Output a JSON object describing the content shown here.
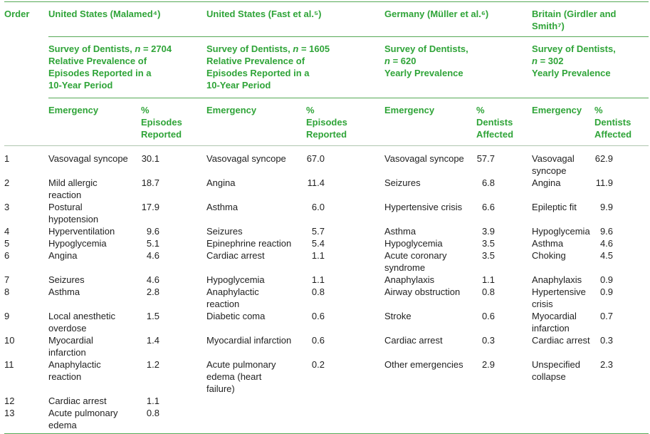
{
  "colors": {
    "header_green": "#2fa438",
    "rule_green": "#56a956",
    "rule_light": "#b0c6b0",
    "body_text": "#1f1f1f"
  },
  "table": {
    "order_header": "Order",
    "groups": [
      {
        "country": "United States (Malamed⁴)",
        "survey_lines": [
          "Survey of Dentists, n = 2704",
          "Relative Prevalence of",
          "Episodes Reported in a",
          "10-Year Period"
        ],
        "emergency_header": "Emergency",
        "percent_header": "% Episodes Reported"
      },
      {
        "country": "United States (Fast et al.⁵)",
        "survey_lines": [
          "Survey of Dentists, n = 1605",
          "Relative Prevalence of",
          "Episodes Reported in a",
          "10-Year Period"
        ],
        "emergency_header": "Emergency",
        "percent_header": "% Episodes Reported"
      },
      {
        "country": "Germany (Müller et al.⁶)",
        "survey_lines": [
          "Survey of Dentists,",
          "n = 620",
          "Yearly Prevalence"
        ],
        "emergency_header": "Emergency",
        "percent_header": "% Dentists Affected"
      },
      {
        "country": "Britain (Girdler and Smith⁷)",
        "survey_lines": [
          "Survey of Dentists,",
          "n = 302",
          "Yearly Prevalence"
        ],
        "emergency_header": "Emergency",
        "percent_header": "% Dentists Affected"
      }
    ],
    "rows": [
      {
        "order": "1",
        "entries": [
          {
            "emergency": "Vasovagal syncope",
            "percent": "30.1"
          },
          {
            "emergency": "Vasovagal syncope",
            "percent": "67.0"
          },
          {
            "emergency": "Vasovagal syncope",
            "percent": "57.7"
          },
          {
            "emergency": "Vasovagal syncope",
            "percent": "62.9"
          }
        ]
      },
      {
        "order": "2",
        "entries": [
          {
            "emergency": "Mild allergic reaction",
            "percent": "18.7"
          },
          {
            "emergency": "Angina",
            "percent": "11.4"
          },
          {
            "emergency": "Seizures",
            "percent": "6.8"
          },
          {
            "emergency": "Angina",
            "percent": "11.9"
          }
        ]
      },
      {
        "order": "3",
        "entries": [
          {
            "emergency": "Postural hypotension",
            "percent": "17.9"
          },
          {
            "emergency": "Asthma",
            "percent": "6.0"
          },
          {
            "emergency": "Hypertensive crisis",
            "percent": "6.6"
          },
          {
            "emergency": "Epileptic fit",
            "percent": "9.9"
          }
        ]
      },
      {
        "order": "4",
        "entries": [
          {
            "emergency": "Hyperventilation",
            "percent": "9.6"
          },
          {
            "emergency": "Seizures",
            "percent": "5.7"
          },
          {
            "emergency": "Asthma",
            "percent": "3.9"
          },
          {
            "emergency": "Hypoglycemia",
            "percent": "9.6"
          }
        ]
      },
      {
        "order": "5",
        "entries": [
          {
            "emergency": "Hypoglycemia",
            "percent": "5.1"
          },
          {
            "emergency": "Epinephrine reaction",
            "percent": "5.4"
          },
          {
            "emergency": "Hypoglycemia",
            "percent": "3.5"
          },
          {
            "emergency": "Asthma",
            "percent": "4.6"
          }
        ]
      },
      {
        "order": "6",
        "entries": [
          {
            "emergency": "Angina",
            "percent": "4.6"
          },
          {
            "emergency": "Cardiac arrest",
            "percent": "1.1"
          },
          {
            "emergency": "Acute coronary syndrome",
            "percent": "3.5"
          },
          {
            "emergency": "Choking",
            "percent": "4.5"
          }
        ]
      },
      {
        "order": "7",
        "entries": [
          {
            "emergency": "Seizures",
            "percent": "4.6"
          },
          {
            "emergency": "Hypoglycemia",
            "percent": "1.1"
          },
          {
            "emergency": "Anaphylaxis",
            "percent": "1.1"
          },
          {
            "emergency": "Anaphylaxis",
            "percent": "0.9"
          }
        ]
      },
      {
        "order": "8",
        "entries": [
          {
            "emergency": "Asthma",
            "percent": "2.8"
          },
          {
            "emergency": "Anaphylactic reaction",
            "percent": "0.8"
          },
          {
            "emergency": "Airway obstruction",
            "percent": "0.8"
          },
          {
            "emergency": "Hypertensive crisis",
            "percent": "0.9"
          }
        ]
      },
      {
        "order": "9",
        "entries": [
          {
            "emergency": "Local anesthetic overdose",
            "percent": "1.5"
          },
          {
            "emergency": "Diabetic coma",
            "percent": "0.6"
          },
          {
            "emergency": "Stroke",
            "percent": "0.6"
          },
          {
            "emergency": "Myocardial infarction",
            "percent": "0.7"
          }
        ]
      },
      {
        "order": "10",
        "entries": [
          {
            "emergency": "Myocardial infarction",
            "percent": "1.4"
          },
          {
            "emergency": "Myocardial infarction",
            "percent": "0.6"
          },
          {
            "emergency": "Cardiac arrest",
            "percent": "0.3"
          },
          {
            "emergency": "Cardiac arrest",
            "percent": "0.3"
          }
        ]
      },
      {
        "order": "11",
        "entries": [
          {
            "emergency": "Anaphylactic reaction",
            "percent": "1.2"
          },
          {
            "emergency": "Acute pulmonary edema (heart failure)",
            "percent": "0.2"
          },
          {
            "emergency": "Other emergencies",
            "percent": "2.9"
          },
          {
            "emergency": "Unspecified collapse",
            "percent": "2.3"
          }
        ]
      },
      {
        "order": "12",
        "entries": [
          {
            "emergency": "Cardiac arrest",
            "percent": "1.1"
          },
          null,
          null,
          null
        ]
      },
      {
        "order": "13",
        "entries": [
          {
            "emergency": "Acute pulmonary edema",
            "percent": "0.8"
          },
          null,
          null,
          null
        ]
      }
    ]
  }
}
